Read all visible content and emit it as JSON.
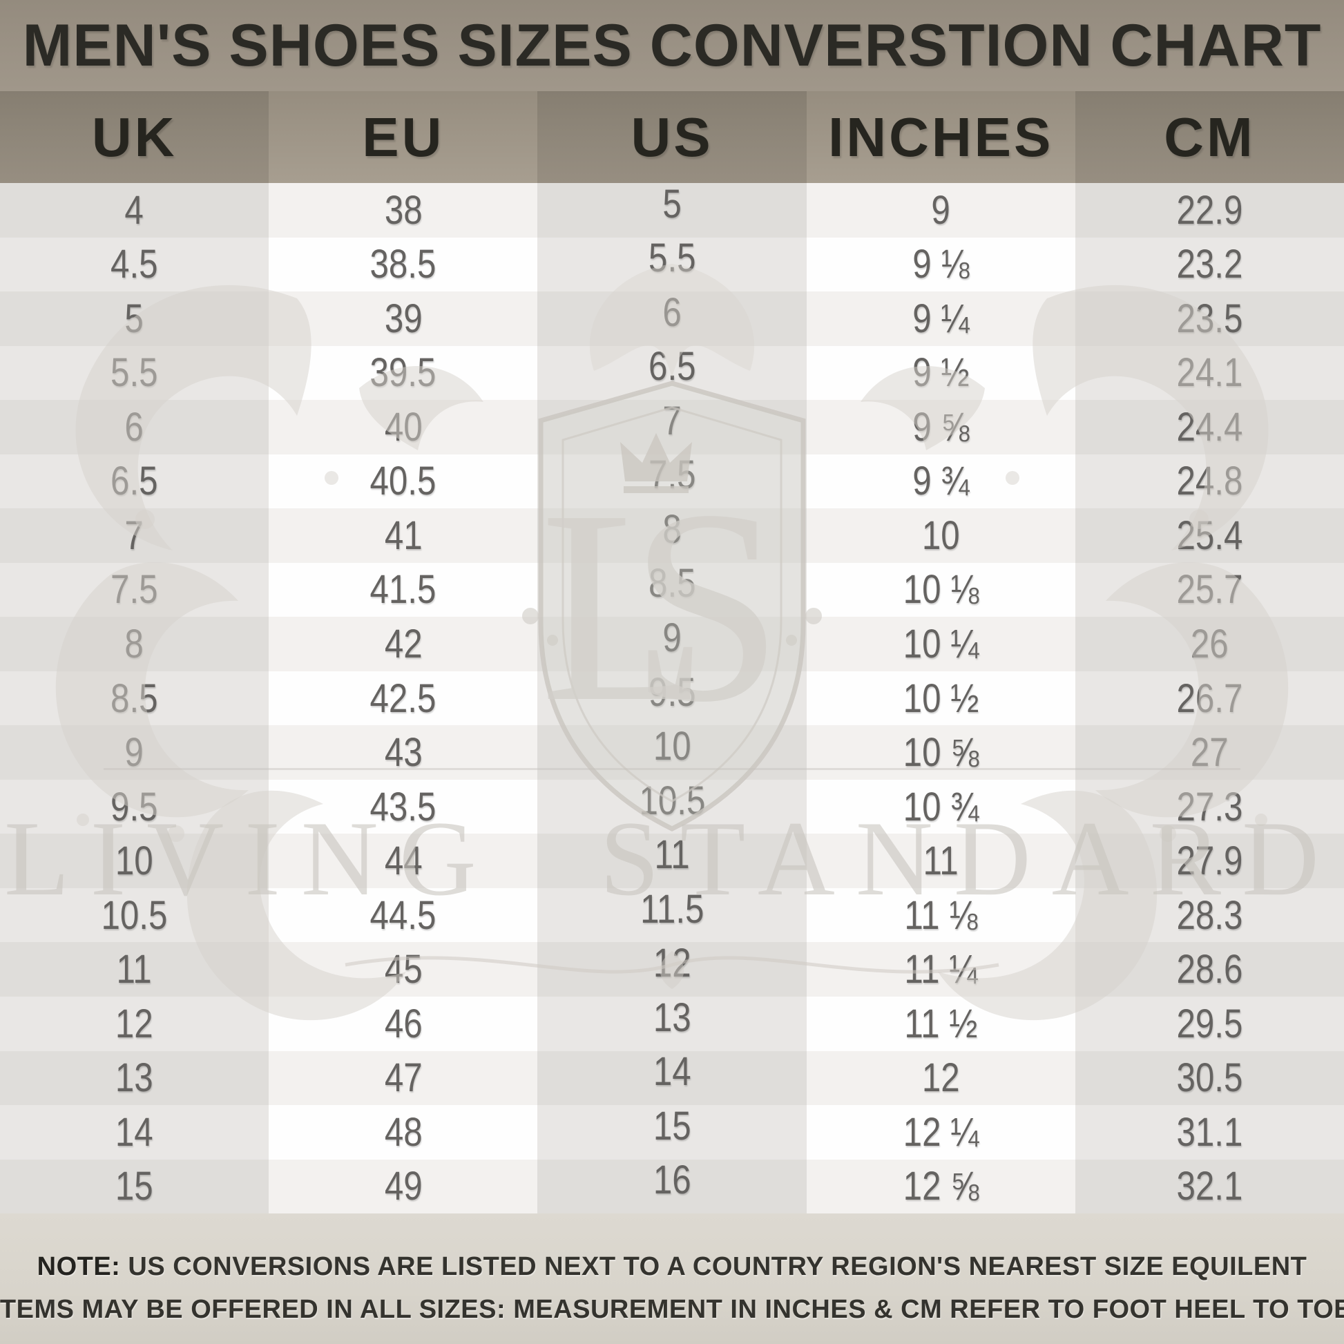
{
  "title": "MEN'S SHOES SIZES CONVERSTION CHART",
  "watermark": {
    "monogram": "LS",
    "name": "LIVING STANDARD"
  },
  "note": {
    "label": "NOTE:",
    "line1": "US CONVERSIONS ARE LISTED NEXT TO A COUNTRY REGION'S NEAREST SIZE EQUILENT",
    "line2": "ITEMS MAY BE OFFERED IN ALL SIZES: MEASUREMENT IN INCHES & CM REFER TO FOOT HEEL TO TOE"
  },
  "colors": {
    "title_background": "#9b9285",
    "header_column_dark": "#8e8679",
    "header_column_light": "#9e9587",
    "body_gray_row_dark": "#dfddda",
    "body_gray_row_light": "#e9e7e5",
    "body_white_row_dark": "#f3f1ef",
    "body_white_row_light": "#fefefe",
    "footer_background": "#d8d4cb",
    "heading_text": "#26251f",
    "number_text": "#656361",
    "watermark_gray": "#d6d2cc"
  },
  "chart_data": {
    "type": "table",
    "title": "MEN'S SHOES SIZES CONVERSTION CHART",
    "columns": [
      "UK",
      "EU",
      "US",
      "INCHES",
      "CM"
    ],
    "rows": [
      [
        "4",
        "38",
        "5",
        "9",
        "22.9"
      ],
      [
        "4.5",
        "38.5",
        "5.5",
        "9 ⅛",
        "23.2"
      ],
      [
        "5",
        "39",
        "6",
        "9 ¼",
        "23.5"
      ],
      [
        "5.5",
        "39.5",
        "6.5",
        "9 ½",
        "24.1"
      ],
      [
        "6",
        "40",
        "7",
        "9 ⅝",
        "24.4"
      ],
      [
        "6.5",
        "40.5",
        "7.5",
        "9 ¾",
        "24.8"
      ],
      [
        "7",
        "41",
        "8",
        "10",
        "25.4"
      ],
      [
        "7.5",
        "41.5",
        "8.5",
        "10 ⅛",
        "25.7"
      ],
      [
        "8",
        "42",
        "9",
        "10 ¼",
        "26"
      ],
      [
        "8.5",
        "42.5",
        "9.5",
        "10 ½",
        "26.7"
      ],
      [
        "9",
        "43",
        "10",
        "10 ⅝",
        "27"
      ],
      [
        "9.5",
        "43.5",
        "10.5",
        "10 ¾",
        "27.3"
      ],
      [
        "10",
        "44",
        "11",
        "11",
        "27.9"
      ],
      [
        "10.5",
        "44.5",
        "11.5",
        "11 ⅛",
        "28.3"
      ],
      [
        "11",
        "45",
        "12",
        "11 ¼",
        "28.6"
      ],
      [
        "12",
        "46",
        "13",
        "11 ½",
        "29.5"
      ],
      [
        "13",
        "47",
        "14",
        "12",
        "30.5"
      ],
      [
        "14",
        "48",
        "15",
        "12 ¼",
        "31.1"
      ],
      [
        "15",
        "49",
        "16",
        "12 ⅝",
        "32.1"
      ]
    ]
  }
}
